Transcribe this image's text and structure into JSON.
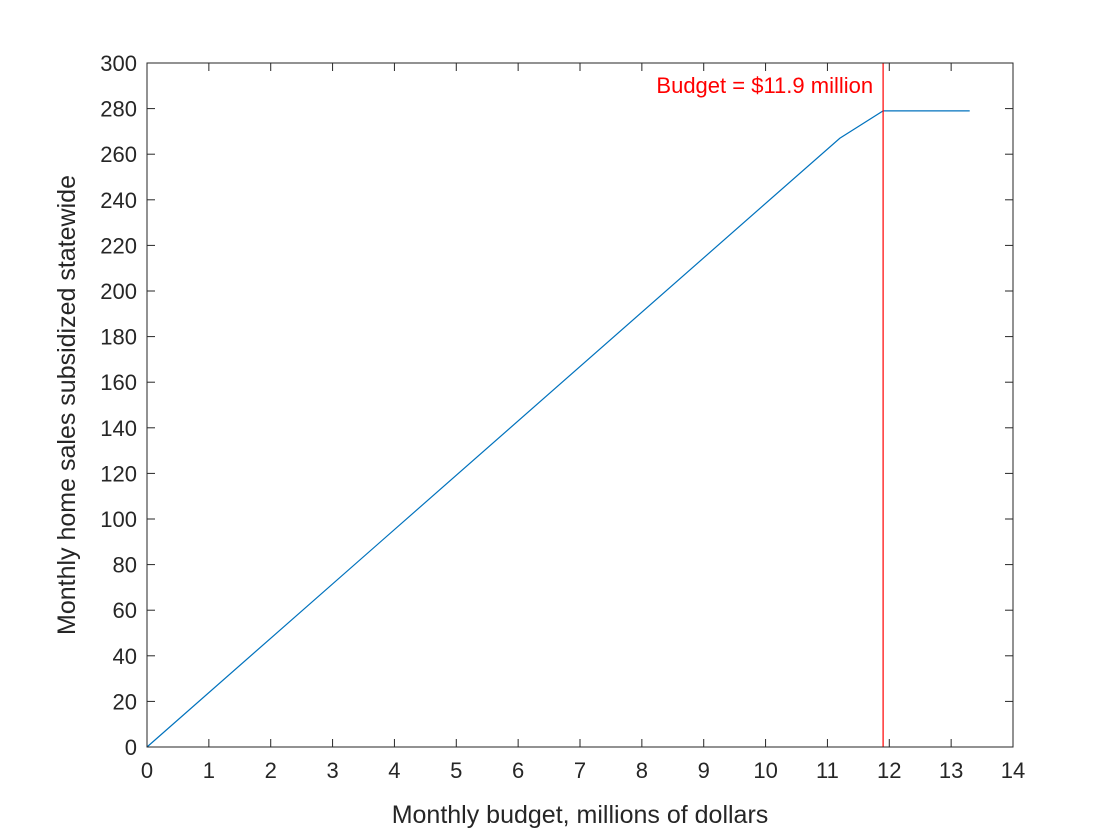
{
  "chart_data": {
    "type": "line",
    "title": "",
    "xlabel": "Monthly budget, millions of dollars",
    "ylabel": "Monthly home sales subsidized statewide",
    "xlim": [
      0,
      14
    ],
    "ylim": [
      0,
      300
    ],
    "xticks": [
      0,
      1,
      2,
      3,
      4,
      5,
      6,
      7,
      8,
      9,
      10,
      11,
      12,
      13,
      14
    ],
    "yticks": [
      0,
      20,
      40,
      60,
      80,
      100,
      120,
      140,
      160,
      180,
      200,
      220,
      240,
      260,
      280,
      300
    ],
    "grid": false,
    "series": [
      {
        "color": "#0072BD",
        "x": [
          0,
          11.2,
          11.9,
          13.3
        ],
        "y": [
          0,
          267,
          279,
          279
        ]
      }
    ],
    "annotations": [
      {
        "type": "vline",
        "x": 11.9,
        "color": "#FF0000",
        "label": "Budget = $11.9 million"
      }
    ]
  }
}
